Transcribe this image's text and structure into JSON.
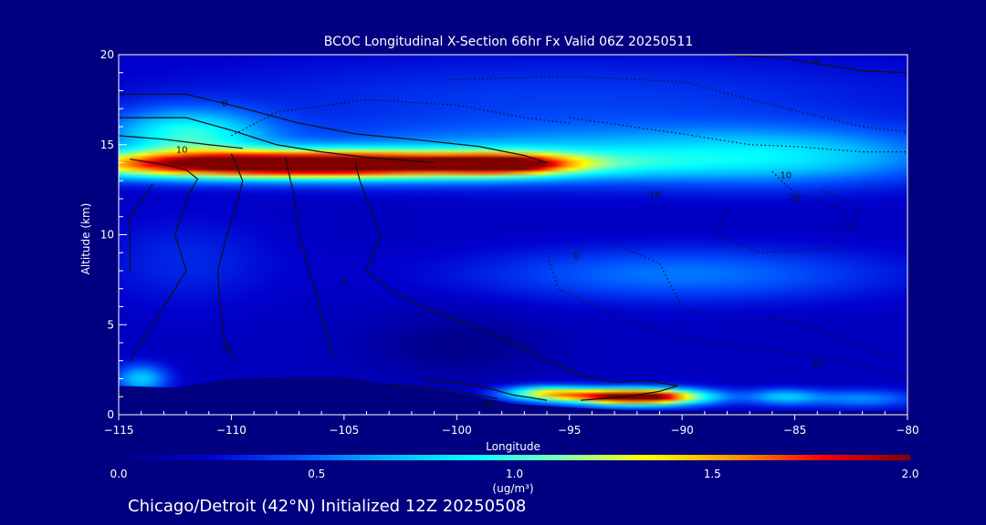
{
  "chart_data": {
    "type": "heatmap",
    "title": "BCOC Longitudinal X-Section 66hr  Fx Valid 06Z 20250511",
    "xlabel": "Longitude",
    "ylabel": "Altitude (km)",
    "xlim": [
      -115,
      -80
    ],
    "ylim": [
      0,
      20
    ],
    "x_ticks": [
      -115,
      -110,
      -105,
      -100,
      -95,
      -90,
      -85,
      -80
    ],
    "x_tick_labels": [
      "−115",
      "−110",
      "−105",
      "−100",
      "−95",
      "−90",
      "−85",
      "−80"
    ],
    "y_ticks": [
      0,
      5,
      10,
      15,
      20
    ],
    "y_tick_labels": [
      "0",
      "5",
      "10",
      "15",
      "20"
    ],
    "colorbar": {
      "range": [
        0.0,
        2.0
      ],
      "ticks": [
        0.0,
        0.5,
        1.0,
        1.5,
        2.0
      ],
      "tick_labels": [
        "0.0",
        "0.5",
        "1.0",
        "1.5",
        "2.0"
      ],
      "unit_label": "(ug/m³)",
      "colors": [
        "#000080",
        "#0000cd",
        "#0050ff",
        "#00b4ff",
        "#00ffff",
        "#7dffb4",
        "#ffff00",
        "#ff9600",
        "#ff0000",
        "#800000"
      ]
    },
    "field_blobs": [
      {
        "lon": -107,
        "alt": 13.9,
        "slon": 10.5,
        "salt": 0.75,
        "value": 2.1
      },
      {
        "lon": -97.8,
        "alt": 13.9,
        "slon": 2.8,
        "salt": 0.55,
        "value": 0.9
      },
      {
        "lon": -112,
        "alt": 15.6,
        "slon": 3.5,
        "salt": 1.4,
        "value": 0.7
      },
      {
        "lon": -95,
        "alt": 14.4,
        "slon": 14.0,
        "salt": 1.6,
        "value": 0.45
      },
      {
        "lon": -85,
        "alt": 14.3,
        "slon": 7.0,
        "salt": 1.6,
        "value": 0.35
      },
      {
        "lon": -95,
        "alt": 17.5,
        "slon": 18.0,
        "salt": 2.5,
        "value": 0.2
      },
      {
        "lon": -90,
        "alt": 7.8,
        "slon": 9.0,
        "salt": 1.5,
        "value": 0.35
      },
      {
        "lon": -112,
        "alt": 8.5,
        "slon": 4.0,
        "salt": 2.5,
        "value": 0.15
      },
      {
        "lon": -92,
        "alt": 1.0,
        "slon": 3.0,
        "salt": 0.45,
        "value": 2.1
      },
      {
        "lon": -96,
        "alt": 1.2,
        "slon": 2.0,
        "salt": 0.4,
        "value": 1.0
      },
      {
        "lon": -85.5,
        "alt": 1.0,
        "slon": 1.6,
        "salt": 0.45,
        "value": 0.5
      },
      {
        "lon": -82,
        "alt": 0.9,
        "slon": 2.5,
        "salt": 0.5,
        "value": 0.4
      },
      {
        "lon": -114,
        "alt": 2.0,
        "slon": 1.2,
        "salt": 0.8,
        "value": 0.55
      },
      {
        "lon": -100,
        "alt": 3.8,
        "slon": 4.0,
        "salt": 1.8,
        "value": -0.15
      }
    ],
    "terrain": [
      [
        -115,
        1.6
      ],
      [
        -112.5,
        1.5
      ],
      [
        -110,
        2.0
      ],
      [
        -107.5,
        2.1
      ],
      [
        -105,
        2.1
      ],
      [
        -102.5,
        1.6
      ],
      [
        -100,
        1.2
      ],
      [
        -97.5,
        0.6
      ],
      [
        -95,
        0.4
      ],
      [
        -92.5,
        0.25
      ],
      [
        -90,
        0.2
      ],
      [
        -87.5,
        0.2
      ],
      [
        -85,
        0.2
      ],
      [
        -82.5,
        0.2
      ],
      [
        -80,
        0.2
      ]
    ],
    "contours": [
      {
        "style": "solid",
        "points": [
          [
            -115,
            17.8
          ],
          [
            -112,
            17.8
          ],
          [
            -110,
            17.2
          ],
          [
            -107,
            16.2
          ],
          [
            -104.5,
            15.6
          ],
          [
            -102,
            15.3
          ],
          [
            -99,
            14.9
          ],
          [
            -97,
            14.4
          ],
          [
            -96,
            14.0
          ]
        ]
      },
      {
        "style": "solid",
        "points": [
          [
            -115,
            16.5
          ],
          [
            -112,
            16.5
          ],
          [
            -110,
            15.8
          ],
          [
            -108,
            15.0
          ],
          [
            -106,
            14.6
          ],
          [
            -104,
            14.3
          ],
          [
            -101,
            14.0
          ]
        ]
      },
      {
        "style": "solid",
        "points": [
          [
            -115,
            15.5
          ],
          [
            -113,
            15.3
          ],
          [
            -111,
            15.0
          ],
          [
            -109.5,
            14.8
          ]
        ]
      },
      {
        "style": "solid",
        "points": [
          [
            -114.5,
            14.2
          ],
          [
            -113,
            13.9
          ],
          [
            -112,
            13.6
          ],
          [
            -111.5,
            13.1
          ],
          [
            -112,
            12.0
          ],
          [
            -112.5,
            10.0
          ],
          [
            -112,
            8.0
          ],
          [
            -113,
            6.0
          ],
          [
            -114,
            4.0
          ],
          [
            -114.5,
            3.0
          ]
        ]
      },
      {
        "style": "solid",
        "points": [
          [
            -113.5,
            12.8
          ],
          [
            -114.5,
            11.0
          ],
          [
            -114.5,
            8.0
          ]
        ]
      },
      {
        "style": "solid",
        "points": [
          [
            -110,
            14.5
          ],
          [
            -109.5,
            13.0
          ],
          [
            -109.8,
            11.5
          ],
          [
            -110.2,
            10.0
          ],
          [
            -110.6,
            8.0
          ],
          [
            -110.5,
            6.0
          ],
          [
            -110.3,
            4.0
          ],
          [
            -109.8,
            3.0
          ]
        ]
      },
      {
        "style": "solid",
        "points": [
          [
            -107.6,
            14.3
          ],
          [
            -107.2,
            12.0
          ],
          [
            -107.0,
            10.0
          ],
          [
            -106.3,
            7.0
          ],
          [
            -106.0,
            5.5
          ],
          [
            -105.5,
            3.2
          ]
        ]
      },
      {
        "style": "solid",
        "points": [
          [
            -104.5,
            14.0
          ],
          [
            -104.3,
            13.0
          ],
          [
            -104.0,
            12.0
          ],
          [
            -103.4,
            10.0
          ],
          [
            -104.0,
            8.0
          ],
          [
            -103.0,
            7.0
          ],
          [
            -101.5,
            6.0
          ],
          [
            -99.5,
            5.0
          ],
          [
            -97.5,
            4.0
          ],
          [
            -96.0,
            3.0
          ],
          [
            -94.5,
            2.2
          ],
          [
            -93.0,
            1.8
          ],
          [
            -91.5,
            1.9
          ],
          [
            -90.2,
            1.6
          ],
          [
            -91.0,
            1.3
          ],
          [
            -92.5,
            1.0
          ],
          [
            -94.5,
            0.8
          ]
        ]
      },
      {
        "style": "solid",
        "points": [
          [
            -101.5,
            2.0
          ],
          [
            -99.0,
            1.6
          ],
          [
            -97.5,
            1.1
          ],
          [
            -96.0,
            0.8
          ]
        ]
      },
      {
        "style": "solid",
        "points": [
          [
            -103.0,
            1.7
          ],
          [
            -100.0,
            1.3
          ],
          [
            -98.2,
            0.9
          ]
        ]
      },
      {
        "style": "dotted",
        "points": [
          [
            -110,
            15.5
          ],
          [
            -108,
            16.8
          ],
          [
            -104,
            17.5
          ],
          [
            -100,
            17.2
          ],
          [
            -97,
            16.5
          ],
          [
            -95,
            16.2
          ]
        ]
      },
      {
        "style": "dotted",
        "points": [
          [
            -100.5,
            18.6
          ],
          [
            -95,
            18.8
          ],
          [
            -90,
            18.5
          ],
          [
            -86,
            17.2
          ],
          [
            -82,
            16.0
          ],
          [
            -80,
            15.7
          ]
        ]
      },
      {
        "style": "dotted",
        "points": [
          [
            -95,
            16.5
          ],
          [
            -90,
            15.6
          ],
          [
            -87,
            15.0
          ],
          [
            -85,
            14.9
          ],
          [
            -82,
            14.6
          ],
          [
            -80,
            14.6
          ]
        ]
      },
      {
        "style": "dotted",
        "points": [
          [
            -93,
            9.5
          ],
          [
            -91,
            8.4
          ],
          [
            -90,
            6.0
          ],
          [
            -88.5,
            5.5
          ],
          [
            -86,
            5.4
          ],
          [
            -84,
            4.8
          ],
          [
            -82,
            3.8
          ],
          [
            -80.5,
            3.0
          ]
        ]
      },
      {
        "style": "dotted",
        "points": [
          [
            -96,
            9.0
          ],
          [
            -95.5,
            7.0
          ],
          [
            -93,
            5.5
          ],
          [
            -90,
            4.2
          ],
          [
            -86,
            3.6
          ],
          [
            -82,
            2.8
          ],
          [
            -80,
            2.0
          ]
        ]
      },
      {
        "style": "dotted",
        "points": [
          [
            -86,
            13.5
          ],
          [
            -85,
            12.3
          ],
          [
            -83,
            11.5
          ],
          [
            -82.5,
            10.5
          ],
          [
            -83.5,
            9.2
          ],
          [
            -86.5,
            9.0
          ],
          [
            -88.5,
            10.0
          ],
          [
            -88.0,
            11.5
          ]
        ]
      },
      {
        "style": "dotted",
        "points": [
          [
            -83.8,
            12.5
          ],
          [
            -82.2,
            11.5
          ],
          [
            -82.4,
            10.5
          ],
          [
            -83.8,
            10.3
          ]
        ]
      },
      {
        "style": "solid",
        "points": [
          [
            -88,
            20.0
          ],
          [
            -85.5,
            19.8
          ],
          [
            -82,
            19.1
          ],
          [
            -80,
            19.0
          ]
        ]
      }
    ],
    "contour_labels": [
      {
        "lon": -110.3,
        "alt": 17.3,
        "text": "0"
      },
      {
        "lon": -112.2,
        "alt": 14.7,
        "text": "10"
      },
      {
        "lon": -105.0,
        "alt": 7.4,
        "text": "0"
      },
      {
        "lon": -110.2,
        "alt": 3.7,
        "text": "10"
      },
      {
        "lon": -98.6,
        "alt": 0.55,
        "text": "10"
      },
      {
        "lon": -91.2,
        "alt": 12.2,
        "text": "10"
      },
      {
        "lon": -85.4,
        "alt": 13.3,
        "text": "10"
      },
      {
        "lon": -85.0,
        "alt": 12.0,
        "text": "20"
      },
      {
        "lon": -94.7,
        "alt": 8.8,
        "text": "0"
      },
      {
        "lon": -84.0,
        "alt": 2.8,
        "text": "10"
      },
      {
        "lon": -84.0,
        "alt": 19.6,
        "text": "0"
      }
    ]
  },
  "footer_text": "Chicago/Detroit (42°N) Initialized 12Z 20250508"
}
